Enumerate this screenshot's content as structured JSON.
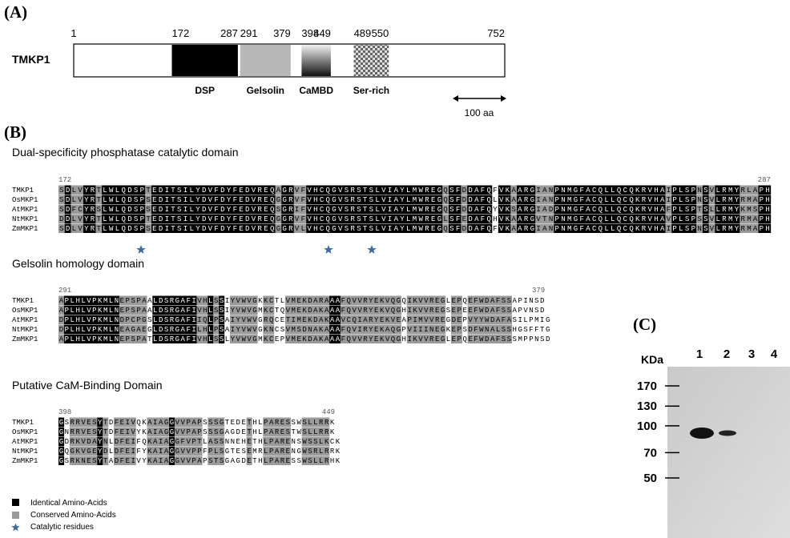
{
  "panel_a": {
    "label": "(A)",
    "protein": "TMKP1",
    "start": 1,
    "end": 752,
    "domains": [
      {
        "name": "DSP",
        "start": 172,
        "end": 287
      },
      {
        "name": "Gelsolin",
        "start": 291,
        "end": 379
      },
      {
        "name": "CaMBD",
        "start": 398,
        "end": 449
      },
      {
        "name": "Ser-rich",
        "start": 489,
        "end": 550
      }
    ],
    "scale_label": "100 aa"
  },
  "panel_b": {
    "label": "(B)",
    "blocks": [
      {
        "title": "Dual-specificity phosphatase catalytic domain",
        "start": 172,
        "end": 287,
        "rows": [
          {
            "name": "TMKP1",
            "sequence": "SDLVYRTLWLQDSPTEDITSILYDVFDYFEDVREQAGRVFVHCQGVSRSTSLVIAYLMWREGQSFDDAFQFVKAARGIANPNMGFACQLLQCQKRVHAIPLSPNSVLRMYRLAPH"
          },
          {
            "name": "OsMKP1",
            "sequence": "SDLVYRTLWLQDSPSEDITSILYDVFDYFEDVREQGGRVFVHCQGVSRSTSLVIAYLMWREGQSFDDAFQLVKAARGIANPNMGFACQLLQCQKRVHAIPLSPNSVLRMYRMAPH"
          },
          {
            "name": "AtMKP1",
            "sequence": "SDFCYRSLWLQDSPSEDITSILYDVFDYFEDVREQSGRIFVHCQGVSRSTSLVIAYLMWREGQSFDDAFQYVKSARGIADPNMGFACQLLQCQKRVHAFPLSPTSLLRMYKMSPH"
          },
          {
            "name": "NtMKP1",
            "sequence": "DDLVYRTLWLQDSPTEDITSILYDVFDYFEDVREQGGRVFVHCQGVSRSTSLVIAYLMWREGLSFEDAFQHVKAARGVTNPNMGFACQLLQCQKRVHAVPLSPSSVLRMYRMAPH"
          },
          {
            "name": "ZmMKP1",
            "sequence": "SDLVYRTLWLQDSPSEDITSILYDVFDYFEDVREQGGRVLVHCQGVSRSTSLVIAYLMWREGQSFDDAFQFVKAARGIANPNMGFACQLLQCQKRVHAIPLSPNSVLRMYRMAPH"
          }
        ]
      },
      {
        "title": "Gelsolin homology domain",
        "start": 291,
        "end": 379,
        "rows": [
          {
            "name": "TMKP1",
            "sequence": "APLHLVPKMLNEPSPAALDSRGAFIVHLSSIYVWVGKKCTLVMEKDARAAAFQVVRYEKVQGQIKVVREGLEPQEFWDAFSSAPINSD"
          },
          {
            "name": "OsMKP1",
            "sequence": "APLHLVPKMLNEPSPAALDSRGAFIVHLSSIYVWVGMKCTQVMEKDAKAAAFQVVRYEKVQGHIKVVREGSEPEEFWDAFSSAPVNSD"
          },
          {
            "name": "AtMKP1",
            "sequence": "DPLHLVPKMLNDPCPGSLDSRGAFIIQLPSAIYVWVGRQCETIMEKDAKAAVCQIARYEKVEAPIMVVREGDEPVYYWDAFASILPMIG"
          },
          {
            "name": "NtMKP1",
            "sequence": "DPLHLVPKMLNEAGAEGLDSRGAFILHLPSAIYVWVGKNCSVMSDNAKAAAFQVIRYEKAQGPVIIINEGKEPSDFWNALSSHGSFFTG"
          },
          {
            "name": "ZmMKP1",
            "sequence": "APLHLVPKMLNEPSPATLDSRGAFIVHLSSLYVWVGMKCEPVMEKDAKAAAFQVVRYEKVQGHIKVVREGLEPQEFWDAFSSSMPPNSD"
          }
        ]
      },
      {
        "title": "Putative CaM-Binding Domain",
        "start": 398,
        "end": 449,
        "rows": [
          {
            "name": "TMKP1",
            "sequence": "GSRRVESYTDFEIVQKAIAGGVVPAPSSSGTEDETHLPARESSWSLLRRK"
          },
          {
            "name": "OsMKP1",
            "sequence": "GNRRVESYTDFEIVYKAIAGGVVPAPSSSGAGDETHLPARESTWSLLRRK"
          },
          {
            "name": "AtMKP1",
            "sequence": "GDRKVDAYNLDFEIFQKAIAGGFVPTLASSNNEHETHLPARENSWSSLKCK"
          },
          {
            "name": "NtMKP1",
            "sequence": "GQGKVGEYDLDFEIFYKAIAGGVVPPFPLSGTESEMRLPARENGWSRLRRK"
          },
          {
            "name": "ZmMKP1",
            "sequence": "GSRKNESYTADFEIVYKAIAGGVVPAPSTSGAGDETHLPARESSWSLLRHK"
          }
        ]
      }
    ],
    "legend": [
      "Identical Amino-Acids",
      "Conserved Amino-Acids",
      "Catalytic residues"
    ]
  },
  "panel_c": {
    "label": "(C)",
    "unit": "KDa",
    "lanes": [
      "1",
      "2",
      "3",
      "4"
    ],
    "markers": [
      170,
      130,
      100,
      70,
      50
    ]
  }
}
